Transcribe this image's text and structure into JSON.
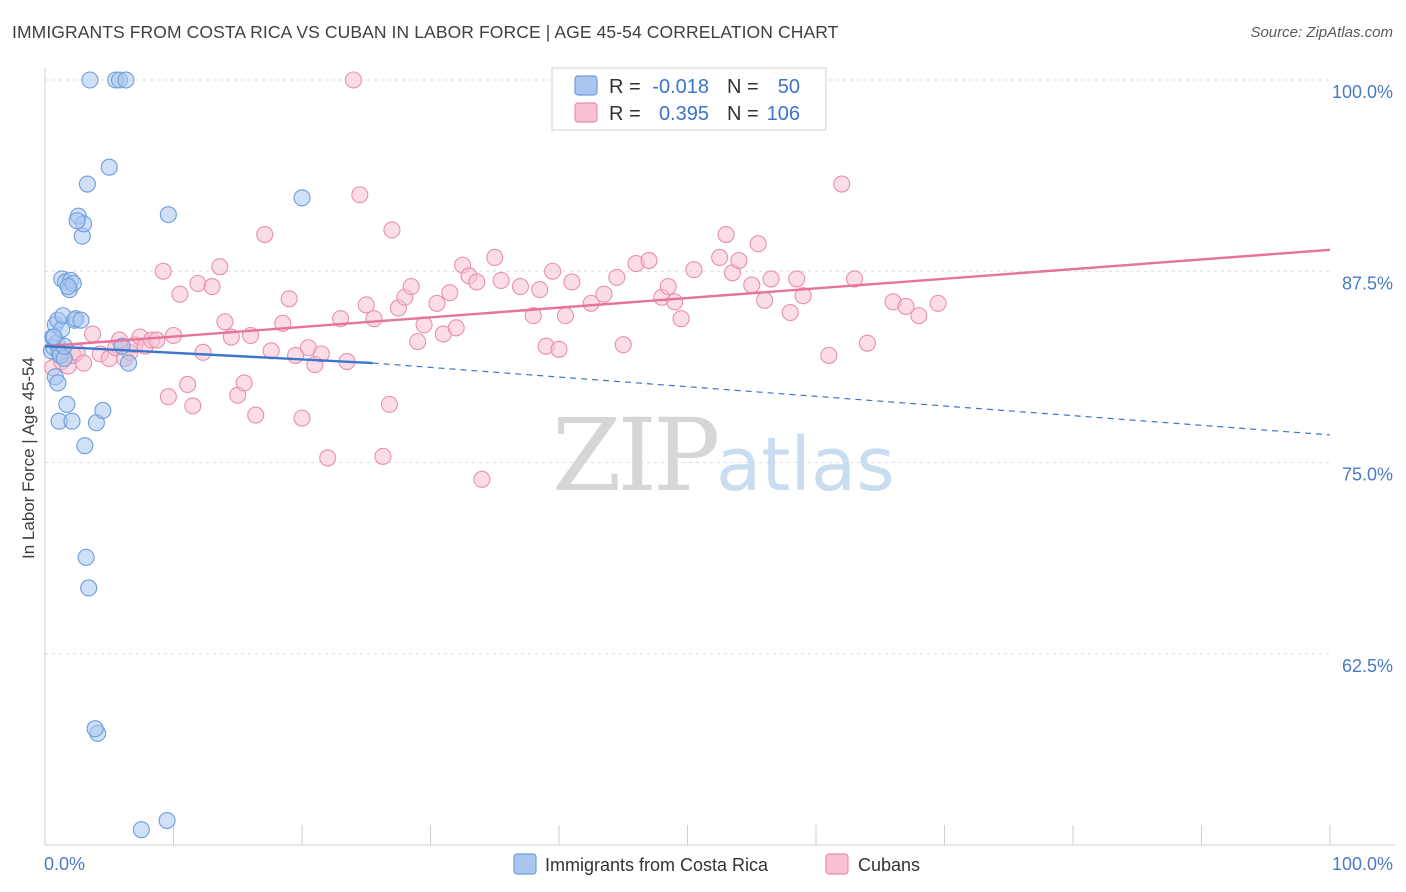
{
  "title": "IMMIGRANTS FROM COSTA RICA VS CUBAN IN LABOR FORCE | AGE 45-54 CORRELATION CHART",
  "source": "Source: ZipAtlas.com",
  "watermark": {
    "zip": "ZIP",
    "atlas": "atlas"
  },
  "legend": {
    "rows": [
      {
        "r_label": "R =",
        "r_value": "-0.018",
        "n_label": "N =",
        "n_value": "50",
        "color": "#a9c7ee",
        "stroke": "#6e9ddc"
      },
      {
        "r_label": "R =",
        "r_value": "0.395",
        "n_label": "N =",
        "n_value": "106",
        "color": "#f7c1d2",
        "stroke": "#e98fae"
      }
    ]
  },
  "bottom_legend": [
    {
      "label": "Immigrants from Costa Rica",
      "color": "#a9c7ee",
      "stroke": "#6e9ddc"
    },
    {
      "label": "Cubans",
      "color": "#f7c1d2",
      "stroke": "#e98fae"
    }
  ],
  "chart_data": {
    "type": "scatter",
    "title": "IMMIGRANTS FROM COSTA RICA VS CUBAN IN LABOR FORCE | AGE 45-54 CORRELATION CHART",
    "xlabel": "",
    "ylabel": "In Labor Force | Age 45-54",
    "xlim": [
      0,
      100
    ],
    "ylim": [
      50,
      100
    ],
    "x_tick_labels": [
      "0.0%",
      "100.0%"
    ],
    "y_ticks": [
      62.5,
      75.0,
      87.5,
      100.0
    ],
    "y_tick_labels": [
      "62.5%",
      "75.0%",
      "87.5%",
      "100.0%"
    ],
    "grid": true,
    "series": [
      {
        "name": "Immigrants from Costa Rica",
        "color": "#6e9ddc",
        "points": [
          [
            0.5,
            82.3
          ],
          [
            0.6,
            83.2
          ],
          [
            0.7,
            82.5
          ],
          [
            0.8,
            84.0
          ],
          [
            0.8,
            80.6
          ],
          [
            0.9,
            82.8
          ],
          [
            1.0,
            84.3
          ],
          [
            1.1,
            82.2
          ],
          [
            1.1,
            77.7
          ],
          [
            1.2,
            82.0
          ],
          [
            1.3,
            83.7
          ],
          [
            1.3,
            87.0
          ],
          [
            1.4,
            84.6
          ],
          [
            1.5,
            81.8
          ],
          [
            1.5,
            82.6
          ],
          [
            1.6,
            86.8
          ],
          [
            1.7,
            78.8
          ],
          [
            1.9,
            86.3
          ],
          [
            2.0,
            86.9
          ],
          [
            2.1,
            77.7
          ],
          [
            2.2,
            86.7
          ],
          [
            2.3,
            84.3
          ],
          [
            2.4,
            84.4
          ],
          [
            2.6,
            91.1
          ],
          [
            2.8,
            84.3
          ],
          [
            2.9,
            89.8
          ],
          [
            3.0,
            90.6
          ],
          [
            3.1,
            76.1
          ],
          [
            3.2,
            68.8
          ],
          [
            3.3,
            93.2
          ],
          [
            3.4,
            66.8
          ],
          [
            3.5,
            100.0
          ],
          [
            4.0,
            77.6
          ],
          [
            4.1,
            57.3
          ],
          [
            4.5,
            78.4
          ],
          [
            5.0,
            94.3
          ],
          [
            5.5,
            100.0
          ],
          [
            5.8,
            100.0
          ],
          [
            6.0,
            82.6
          ],
          [
            6.3,
            100.0
          ],
          [
            6.5,
            81.5
          ],
          [
            7.5,
            51.0
          ],
          [
            9.5,
            51.6
          ],
          [
            9.6,
            91.2
          ],
          [
            20.0,
            92.3
          ],
          [
            3.9,
            57.6
          ],
          [
            2.5,
            90.8
          ],
          [
            1.0,
            80.2
          ],
          [
            0.7,
            83.2
          ],
          [
            1.8,
            86.5
          ]
        ]
      },
      {
        "name": "Cubans",
        "color": "#e98fae",
        "points": [
          [
            0.6,
            81.2
          ],
          [
            1.3,
            81.6
          ],
          [
            1.8,
            81.3
          ],
          [
            2.2,
            82.0
          ],
          [
            2.5,
            82.2
          ],
          [
            3.0,
            81.5
          ],
          [
            3.7,
            83.4
          ],
          [
            4.3,
            82.1
          ],
          [
            5.0,
            81.8
          ],
          [
            5.5,
            82.5
          ],
          [
            5.8,
            83.0
          ],
          [
            6.2,
            81.8
          ],
          [
            6.6,
            82.2
          ],
          [
            7.0,
            82.7
          ],
          [
            7.4,
            83.2
          ],
          [
            7.8,
            82.6
          ],
          [
            8.3,
            83.0
          ],
          [
            8.7,
            83.0
          ],
          [
            9.2,
            87.5
          ],
          [
            9.6,
            79.3
          ],
          [
            10.0,
            83.3
          ],
          [
            10.5,
            86.0
          ],
          [
            11.1,
            80.1
          ],
          [
            11.5,
            78.7
          ],
          [
            11.9,
            86.7
          ],
          [
            12.3,
            82.2
          ],
          [
            13.0,
            86.5
          ],
          [
            13.6,
            87.8
          ],
          [
            14.0,
            84.2
          ],
          [
            14.5,
            83.2
          ],
          [
            15.0,
            79.4
          ],
          [
            15.5,
            80.2
          ],
          [
            16.0,
            83.3
          ],
          [
            16.4,
            78.1
          ],
          [
            17.1,
            89.9
          ],
          [
            17.6,
            82.3
          ],
          [
            18.5,
            84.1
          ],
          [
            19.0,
            85.7
          ],
          [
            19.5,
            82.0
          ],
          [
            20.0,
            77.9
          ],
          [
            20.5,
            82.5
          ],
          [
            21.0,
            81.4
          ],
          [
            21.5,
            82.1
          ],
          [
            22.0,
            75.3
          ],
          [
            23.0,
            84.4
          ],
          [
            23.5,
            81.6
          ],
          [
            24.0,
            100.0
          ],
          [
            24.5,
            92.5
          ],
          [
            25.0,
            85.3
          ],
          [
            25.6,
            84.4
          ],
          [
            26.3,
            75.4
          ],
          [
            26.8,
            78.8
          ],
          [
            27.0,
            90.2
          ],
          [
            27.5,
            85.1
          ],
          [
            28.0,
            85.8
          ],
          [
            28.5,
            86.5
          ],
          [
            29.0,
            82.9
          ],
          [
            29.5,
            84.0
          ],
          [
            30.5,
            85.4
          ],
          [
            31.0,
            83.4
          ],
          [
            31.5,
            86.1
          ],
          [
            32.0,
            83.8
          ],
          [
            32.5,
            87.9
          ],
          [
            33.0,
            87.2
          ],
          [
            33.6,
            86.8
          ],
          [
            34.0,
            73.9
          ],
          [
            35.0,
            88.4
          ],
          [
            35.5,
            86.9
          ],
          [
            37.0,
            86.5
          ],
          [
            38.0,
            84.6
          ],
          [
            38.5,
            86.3
          ],
          [
            39.0,
            82.6
          ],
          [
            39.5,
            87.5
          ],
          [
            40.0,
            82.4
          ],
          [
            40.5,
            84.6
          ],
          [
            41.0,
            86.8
          ],
          [
            42.5,
            85.4
          ],
          [
            43.5,
            86.0
          ],
          [
            44.5,
            87.1
          ],
          [
            45.0,
            82.7
          ],
          [
            46.0,
            88.0
          ],
          [
            47.0,
            88.2
          ],
          [
            48.0,
            85.8
          ],
          [
            48.5,
            86.5
          ],
          [
            49.5,
            84.4
          ],
          [
            49.0,
            85.5
          ],
          [
            50.5,
            87.6
          ],
          [
            52.5,
            88.4
          ],
          [
            53.0,
            89.9
          ],
          [
            53.5,
            87.4
          ],
          [
            54.0,
            88.2
          ],
          [
            55.0,
            86.6
          ],
          [
            55.5,
            89.3
          ],
          [
            56.0,
            85.6
          ],
          [
            56.5,
            87.0
          ],
          [
            58.0,
            84.8
          ],
          [
            58.5,
            87.0
          ],
          [
            59.0,
            85.9
          ],
          [
            61.0,
            82.0
          ],
          [
            62.0,
            93.2
          ],
          [
            63.0,
            87.0
          ],
          [
            64.0,
            82.8
          ],
          [
            66.0,
            85.5
          ],
          [
            67.0,
            85.2
          ],
          [
            68.0,
            84.6
          ],
          [
            69.5,
            85.4
          ]
        ]
      }
    ],
    "trendlines": [
      {
        "series": "Immigrants from Costa Rica",
        "solid": [
          [
            0,
            82.6
          ],
          [
            25.5,
            81.5
          ]
        ],
        "dashed": [
          [
            25.5,
            81.5
          ],
          [
            100,
            76.8
          ]
        ]
      },
      {
        "series": "Cubans",
        "solid": [
          [
            0,
            82.6
          ],
          [
            100,
            88.9
          ]
        ]
      }
    ]
  }
}
